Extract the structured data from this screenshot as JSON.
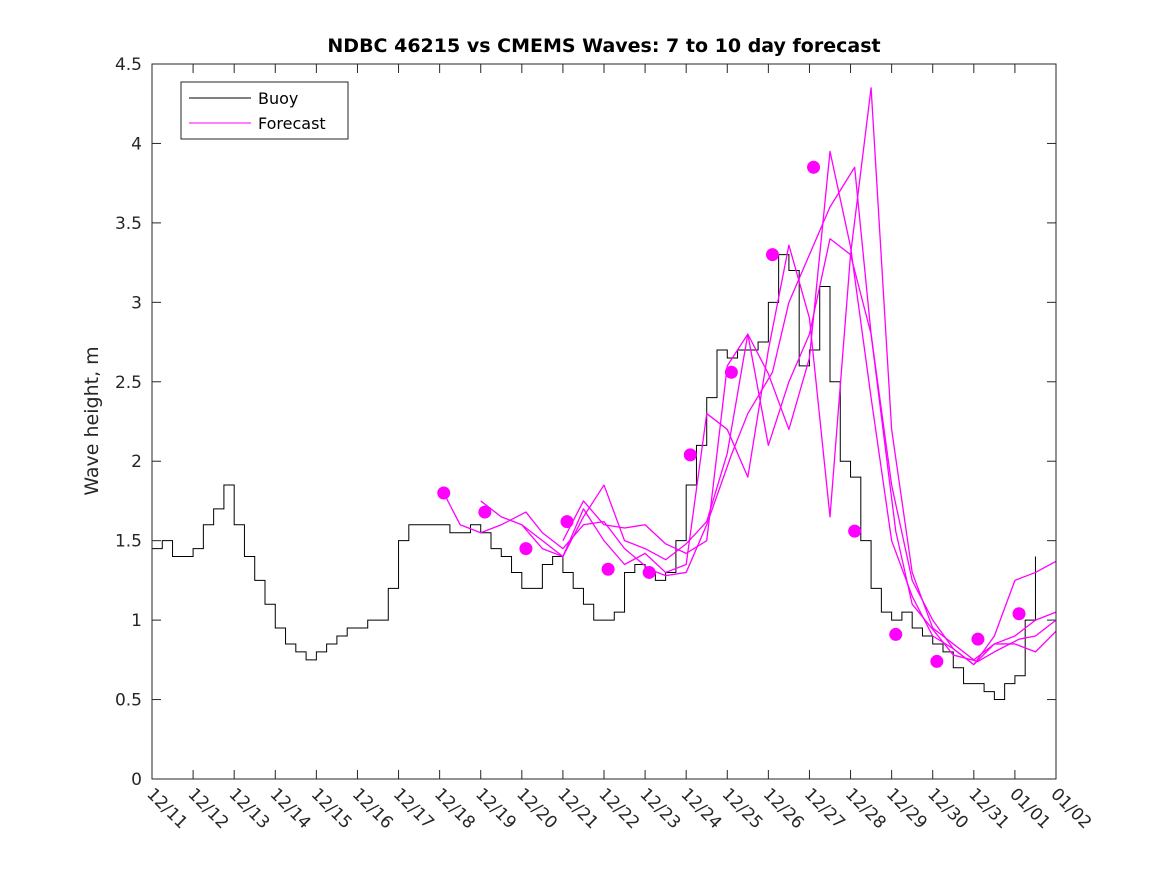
{
  "chart_data": {
    "type": "line",
    "title": "NDBC 46215 vs CMEMS Waves: 7 to 10 day forecast",
    "xlabel": "",
    "ylabel": "Wave height, m",
    "xlim": [
      0,
      22
    ],
    "ylim": [
      0,
      4.5
    ],
    "x_ticks": [
      0,
      1,
      2,
      3,
      4,
      5,
      6,
      7,
      8,
      9,
      10,
      11,
      12,
      13,
      14,
      15,
      16,
      17,
      18,
      19,
      20,
      21,
      22
    ],
    "x_tick_labels": [
      "12/11",
      "12/12",
      "12/13",
      "12/14",
      "12/15",
      "12/16",
      "12/17",
      "12/18",
      "12/19",
      "12/20",
      "12/21",
      "12/22",
      "12/23",
      "12/24",
      "12/25",
      "12/26",
      "12/27",
      "12/28",
      "12/29",
      "12/30",
      "12/31",
      "01/01",
      "01/02"
    ],
    "y_ticks": [
      0,
      0.5,
      1,
      1.5,
      2,
      2.5,
      3,
      3.5,
      4,
      4.5
    ],
    "y_tick_labels": [
      "0",
      "0.5",
      "1",
      "1.5",
      "2",
      "2.5",
      "3",
      "3.5",
      "4",
      "4.5"
    ],
    "legend": {
      "position": "top-left",
      "entries": [
        {
          "label": "Buoy",
          "color": "#000000"
        },
        {
          "label": "Forecast",
          "color": "#ff00ff"
        }
      ]
    },
    "colors": {
      "buoy": "#000000",
      "forecast": "#ff00ff"
    },
    "series": [
      {
        "name": "Buoy",
        "color": "#000000",
        "x": [
          0,
          0.25,
          0.5,
          0.75,
          1,
          1.25,
          1.5,
          1.75,
          2,
          2.25,
          2.5,
          2.75,
          3,
          3.25,
          3.5,
          3.75,
          4,
          4.25,
          4.5,
          4.75,
          5,
          5.25,
          5.5,
          5.75,
          6,
          6.25,
          6.5,
          6.75,
          7,
          7.25,
          7.5,
          7.75,
          8,
          8.25,
          8.5,
          8.75,
          9,
          9.25,
          9.5,
          9.75,
          10,
          10.25,
          10.5,
          10.75,
          11,
          11.25,
          11.5,
          11.75,
          12,
          12.25,
          12.5,
          12.75,
          13,
          13.25,
          13.5,
          13.75,
          14,
          14.25,
          14.5,
          14.75,
          15,
          15.25,
          15.5,
          15.75,
          16,
          16.25,
          16.5,
          16.75,
          17,
          17.25,
          17.5,
          17.75,
          18,
          18.25,
          18.5,
          18.75,
          19,
          19.25,
          19.5,
          19.75,
          20,
          20.25,
          20.5,
          20.75,
          21,
          21.25,
          21.5
        ],
        "y": [
          1.45,
          1.5,
          1.4,
          1.4,
          1.45,
          1.6,
          1.7,
          1.85,
          1.6,
          1.4,
          1.25,
          1.1,
          0.95,
          0.85,
          0.8,
          0.75,
          0.8,
          0.85,
          0.9,
          0.95,
          0.95,
          1.0,
          1.0,
          1.2,
          1.5,
          1.6,
          1.6,
          1.6,
          1.6,
          1.55,
          1.55,
          1.6,
          1.55,
          1.45,
          1.4,
          1.3,
          1.2,
          1.2,
          1.35,
          1.4,
          1.3,
          1.2,
          1.1,
          1.0,
          1.0,
          1.05,
          1.3,
          1.35,
          1.3,
          1.25,
          1.3,
          1.5,
          1.85,
          2.1,
          2.4,
          2.7,
          2.65,
          2.7,
          2.7,
          2.75,
          3.0,
          3.3,
          3.2,
          2.6,
          2.7,
          3.1,
          2.5,
          2.0,
          1.9,
          1.5,
          1.2,
          1.05,
          1.0,
          1.05,
          0.95,
          0.9,
          0.85,
          0.8,
          0.7,
          0.6,
          0.6,
          0.55,
          0.5,
          0.6,
          0.65,
          1.0,
          1.4
        ]
      },
      {
        "name": "Forecast",
        "color": "#ff00ff",
        "segments": [
          {
            "x": [
              7.1,
              7.5,
              8.0,
              8.5,
              9.1,
              9.5,
              10.0,
              10.5,
              11.0,
              11.5,
              12.1,
              12.5,
              13.0,
              13.5,
              14.1,
              14.5,
              15.1,
              15.5,
              16.0,
              16.5,
              17.1,
              17.5,
              18.1,
              18.5,
              19.1,
              19.5,
              20.1,
              20.5,
              21.1,
              21.5,
              22.0
            ],
            "y": [
              1.8,
              1.6,
              1.55,
              1.6,
              1.68,
              1.55,
              1.45,
              1.6,
              1.62,
              1.45,
              1.32,
              1.28,
              1.3,
              1.6,
              2.04,
              2.3,
              2.56,
              3.0,
              3.3,
              3.6,
              3.85,
              2.8,
              1.56,
              1.1,
              0.91,
              0.78,
              0.74,
              0.8,
              0.88,
              0.9,
              1.0
            ]
          },
          {
            "x": [
              8.0,
              8.5,
              9.0,
              9.5,
              10.0,
              10.5,
              11.0,
              11.5,
              12.0,
              12.5,
              13.0,
              13.5,
              14.0,
              14.5,
              15.0,
              15.5,
              16.0,
              16.5,
              17.0,
              17.5,
              18.0,
              18.5,
              19.0,
              19.5,
              20.0,
              20.5,
              21.0,
              21.5,
              22.0
            ],
            "y": [
              1.75,
              1.65,
              1.6,
              1.45,
              1.4,
              1.65,
              1.85,
              1.5,
              1.45,
              1.38,
              1.48,
              1.62,
              2.05,
              2.8,
              2.55,
              2.2,
              2.65,
              3.95,
              3.35,
              2.4,
              1.5,
              1.15,
              0.9,
              0.82,
              0.72,
              0.85,
              0.9,
              1.0,
              1.05
            ]
          },
          {
            "x": [
              9.0,
              9.5,
              10.0,
              10.5,
              11.0,
              11.5,
              12.0,
              12.5,
              13.0,
              13.5,
              14.0,
              14.5,
              15.0,
              15.5,
              16.0,
              16.5,
              17.0,
              17.5,
              18.0,
              18.5,
              19.0,
              19.5,
              20.0,
              20.5,
              21.0,
              21.5,
              22.0
            ],
            "y": [
              1.6,
              1.5,
              1.4,
              1.7,
              1.5,
              1.35,
              1.42,
              1.3,
              1.35,
              2.3,
              2.2,
              1.9,
              2.7,
              3.36,
              2.9,
              1.65,
              3.3,
              4.35,
              2.2,
              1.3,
              0.95,
              0.85,
              0.75,
              0.85,
              0.85,
              0.8,
              0.93
            ]
          },
          {
            "x": [
              10.0,
              10.5,
              11.0,
              11.5,
              12.0,
              12.5,
              13.0,
              13.5,
              14.0,
              14.5,
              15.0,
              15.5,
              16.0,
              16.5,
              17.0,
              17.5,
              18.0,
              18.5,
              19.0,
              19.5,
              20.0,
              20.5,
              21.0,
              21.5,
              22.0
            ],
            "y": [
              1.5,
              1.75,
              1.6,
              1.58,
              1.6,
              1.48,
              1.42,
              1.5,
              2.6,
              2.8,
              2.1,
              2.5,
              2.8,
              3.4,
              3.3,
              2.8,
              1.85,
              1.25,
              1.0,
              0.82,
              0.72,
              0.9,
              1.25,
              1.3,
              1.37
            ]
          }
        ],
        "markers": {
          "x": [
            7.1,
            8.1,
            9.1,
            10.1,
            11.1,
            12.1,
            13.1,
            14.1,
            15.1,
            16.1,
            17.1,
            18.1,
            19.1,
            20.1,
            21.1
          ],
          "y": [
            1.8,
            1.68,
            1.45,
            1.62,
            1.32,
            1.3,
            2.04,
            2.56,
            3.3,
            3.85,
            1.56,
            0.91,
            0.74,
            0.88,
            1.04
          ]
        }
      }
    ]
  }
}
